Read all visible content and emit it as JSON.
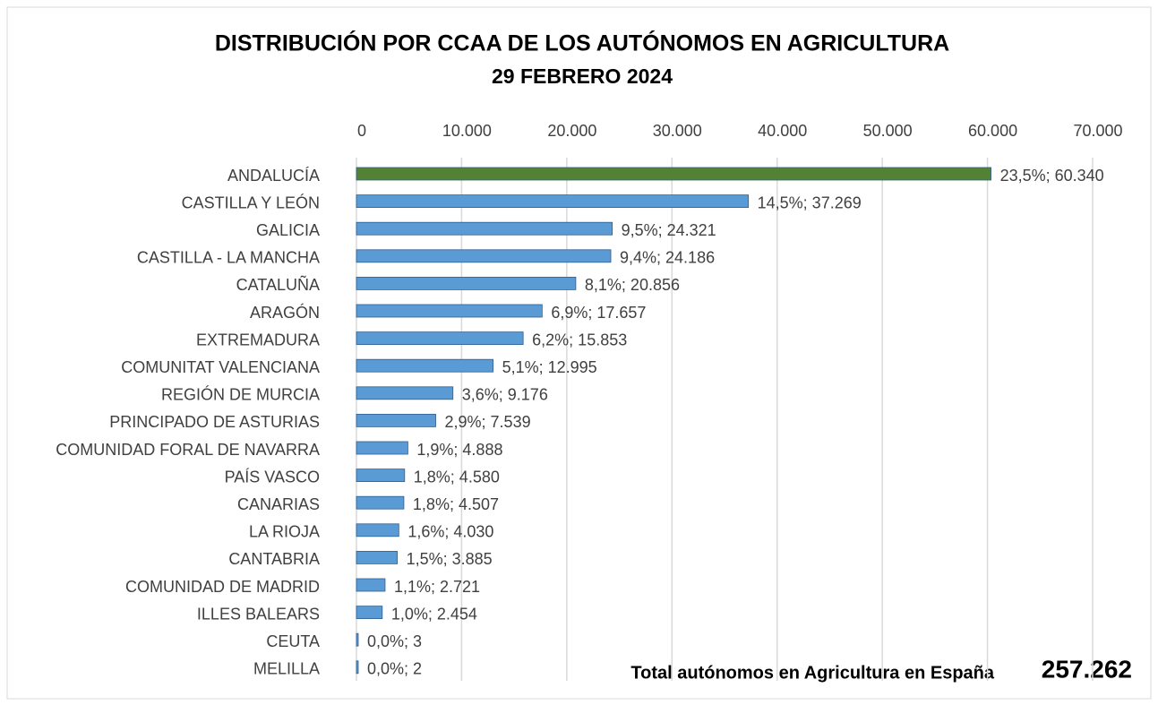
{
  "chart_data": {
    "type": "barh",
    "title": "DISTRIBUCIÓN POR CCAA DE LOS AUTÓNOMOS EN AGRICULTURA",
    "subtitle": "29 FEBRERO 2024",
    "categories": [
      "ANDALUCÍA",
      "CASTILLA Y LEÓN",
      "GALICIA",
      "CASTILLA - LA MANCHA",
      "CATALUÑA",
      "ARAGÓN",
      "EXTREMADURA",
      "COMUNITAT VALENCIANA",
      "REGIÓN DE MURCIA",
      "PRINCIPADO DE ASTURIAS",
      "COMUNIDAD FORAL DE NAVARRA",
      "PAÍS VASCO",
      "CANARIAS",
      "LA RIOJA",
      "CANTABRIA",
      "COMUNIDAD DE MADRID",
      "ILLES BALEARS",
      "CEUTA",
      "MELILLA"
    ],
    "values": [
      60340,
      37269,
      24321,
      24186,
      20856,
      17657,
      15853,
      12995,
      9176,
      7539,
      4888,
      4580,
      4507,
      4030,
      3885,
      2721,
      2454,
      3,
      2
    ],
    "value_labels": [
      "23,5%; 60.340",
      "14,5%; 37.269",
      "9,5%; 24.321",
      "9,4%; 24.186",
      "8,1%; 20.856",
      "6,9%; 17.657",
      "6,2%; 15.853",
      "5,1%; 12.995",
      "3,6%; 9.176",
      "2,9%; 7.539",
      "1,9%; 4.888",
      "1,8%; 4.580",
      "1,8%; 4.507",
      "1,6%; 4.030",
      "1,5%; 3.885",
      "1,1%; 2.721",
      "1,0%; 2.454",
      "0,0%; 3",
      "0,0%; 2"
    ],
    "colors": [
      "#548235",
      "#5b9bd5",
      "#5b9bd5",
      "#5b9bd5",
      "#5b9bd5",
      "#5b9bd5",
      "#5b9bd5",
      "#5b9bd5",
      "#5b9bd5",
      "#5b9bd5",
      "#5b9bd5",
      "#5b9bd5",
      "#5b9bd5",
      "#5b9bd5",
      "#5b9bd5",
      "#5b9bd5",
      "#5b9bd5",
      "#5b9bd5",
      "#5b9bd5"
    ],
    "xlim": [
      0,
      70000
    ],
    "xticks": [
      0,
      {
        "value": 10000,
        "label": "10.000"
      },
      {
        "value": 20000,
        "label": "20.000"
      },
      {
        "value": 30000,
        "label": "30.000"
      },
      {
        "value": 40000,
        "label": "40.000"
      },
      {
        "value": 50000,
        "label": "50.000"
      },
      {
        "value": 60000,
        "label": "60.000"
      },
      {
        "value": 70000,
        "label": "70.000"
      }
    ],
    "grid": true,
    "annotations": [
      "Total autónomos en Agricultura en España",
      "257.262"
    ]
  }
}
